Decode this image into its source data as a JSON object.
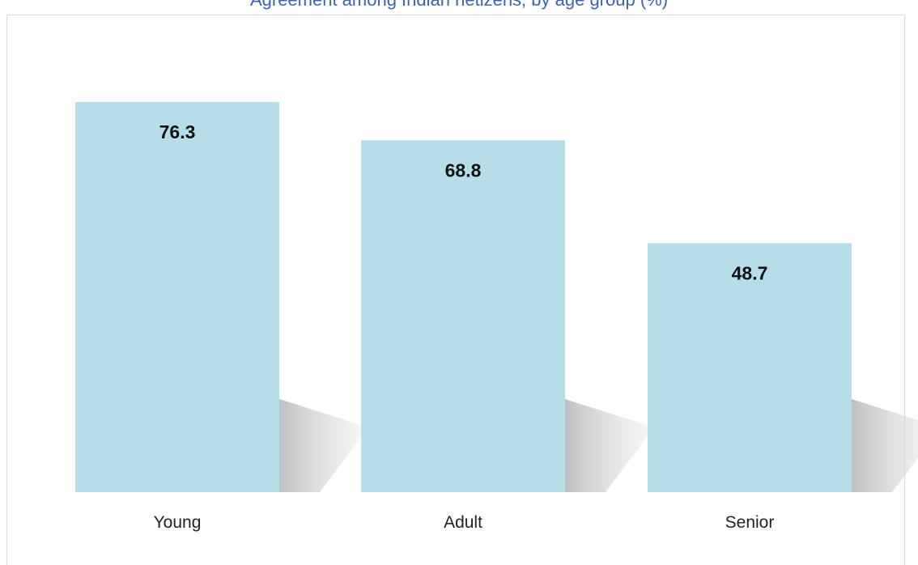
{
  "chart_data": {
    "type": "bar",
    "title": "Agreement among Indian netizens, by age group (%)",
    "categories": [
      "Young",
      "Adult",
      "Senior"
    ],
    "values": [
      76.3,
      68.8,
      48.7
    ],
    "data_labels": [
      "76.3",
      "68.8",
      "48.7"
    ],
    "xlabel": "",
    "ylabel": "",
    "ylim": [
      0,
      76.3
    ],
    "grid": false,
    "legend": "none",
    "colors": {
      "bar": "#b6dde8",
      "title": "#3b64b5",
      "frame": "#d9d9d9",
      "shadow": "#c8c8c8"
    }
  }
}
